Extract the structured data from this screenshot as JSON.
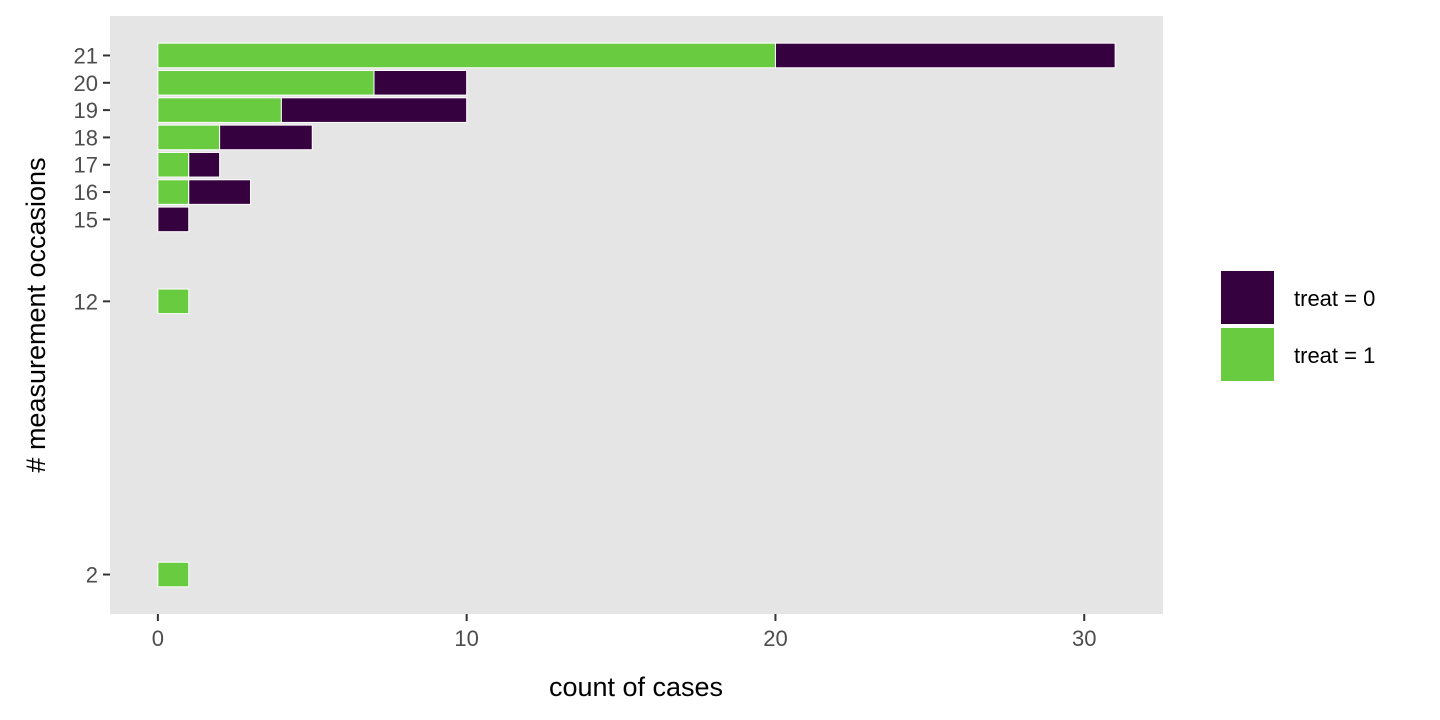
{
  "chart_data": {
    "type": "bar",
    "orientation": "horizontal",
    "stacked": true,
    "xlabel": "count of cases",
    "ylabel": "# measurement occasions",
    "categories": [
      2,
      12,
      15,
      16,
      17,
      18,
      19,
      20,
      21
    ],
    "series": [
      {
        "name": "treat = 0",
        "color": "#36013f",
        "values": [
          0,
          0,
          1,
          2,
          1,
          3,
          6,
          3,
          11
        ]
      },
      {
        "name": "treat = 1",
        "color": "#69cc40",
        "values": [
          1,
          1,
          0,
          1,
          1,
          2,
          4,
          7,
          20
        ]
      }
    ],
    "xlim": [
      -1.55,
      32.55
    ],
    "ylim": [
      0.555,
      22.445
    ],
    "xticks": [
      0,
      10,
      20,
      30
    ],
    "yticks": [
      2,
      12,
      15,
      16,
      17,
      18,
      19,
      20,
      21
    ],
    "grid": false,
    "panel_background": "#e5e5e5",
    "legend_position": "right"
  }
}
